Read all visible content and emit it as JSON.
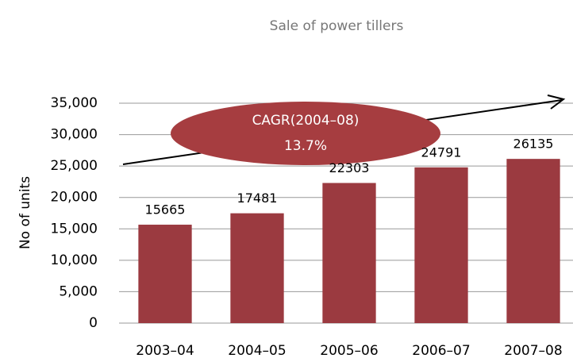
{
  "chart_data": {
    "type": "bar",
    "title": "Sale of power tillers",
    "ylabel": "No of units",
    "categories": [
      "2003–04",
      "2004–05",
      "2005–06",
      "2006–07",
      "2007–08"
    ],
    "values": [
      15665,
      17481,
      22303,
      24791,
      26135
    ],
    "color": "#9b3a40",
    "ylim": [
      0,
      35000
    ],
    "yticks": [
      0,
      {
        "value": 5000,
        "label": "5,000"
      },
      {
        "value": 10000,
        "label": "10,000"
      },
      {
        "value": 15000,
        "label": "15,000"
      },
      {
        "value": 20000,
        "label": "20,000"
      },
      {
        "value": 25000,
        "label": "25,000"
      },
      {
        "value": 30000,
        "label": "30,000"
      },
      {
        "value": 35000,
        "label": "35,000"
      }
    ],
    "grid": true,
    "annotations": [
      "CAGR(2004–08)",
      "13.7%"
    ]
  }
}
